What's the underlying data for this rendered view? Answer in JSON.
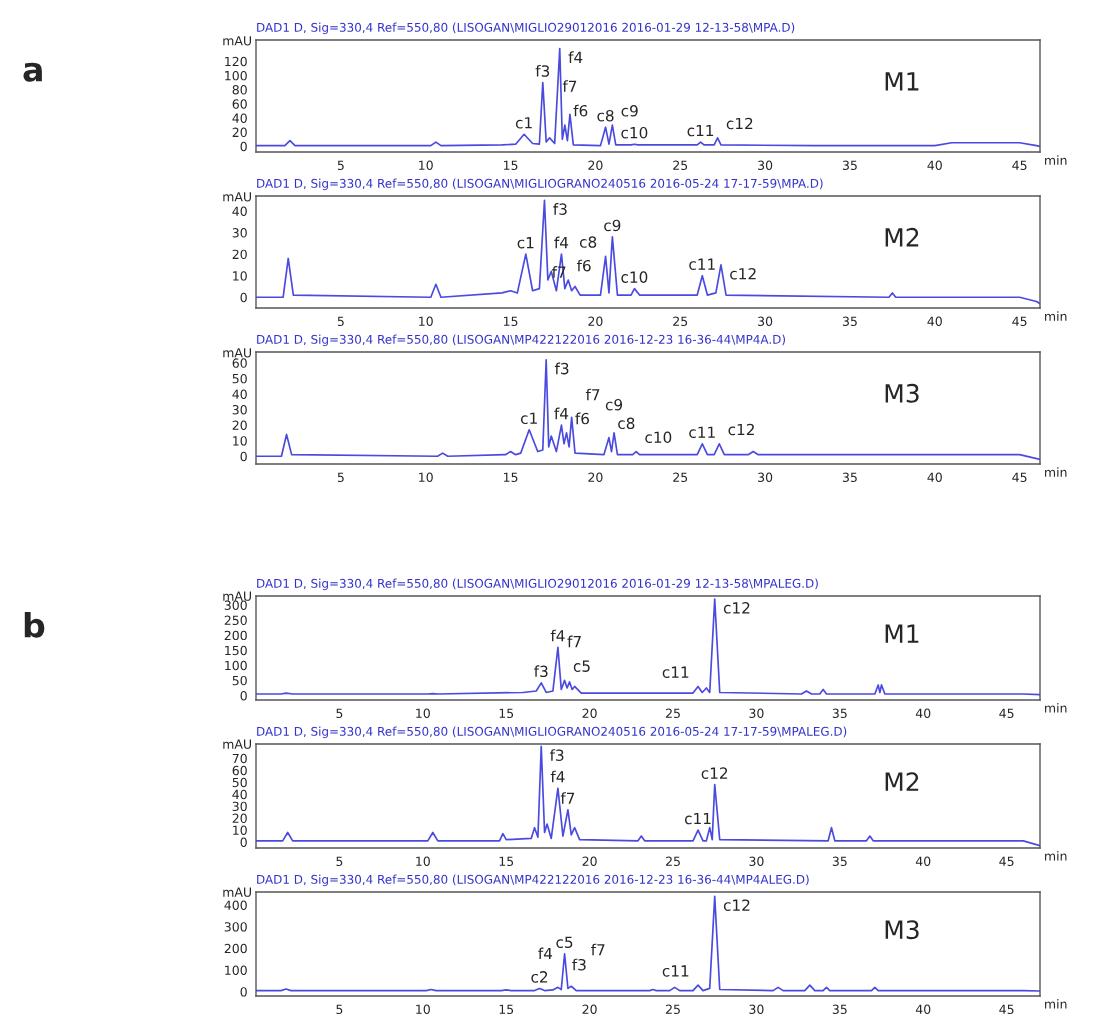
{
  "chart_data": [
    {
      "type": "line",
      "title": "DAD1 D, Sig=330,4 Ref=550,80 (LISOGAN\\MIGLIO29012016 2016-01-29 12-13-58\\MPA.D)",
      "xlabel": "min",
      "ylabel": "mAU",
      "xlim": [
        0,
        46.2
      ],
      "xticks": [
        5,
        10,
        15,
        20,
        25,
        30,
        35,
        40,
        45
      ],
      "ylim": [
        -8,
        150
      ],
      "yticks": [
        0,
        20,
        40,
        60,
        80,
        100,
        120
      ],
      "series": [
        {
          "color": "#4a4ae0",
          "x": [
            0,
            1.7,
            2.0,
            2.3,
            10.3,
            10.6,
            10.9,
            14.5,
            15.3,
            15.8,
            16.3,
            16.7,
            16.9,
            17.1,
            17.3,
            17.6,
            17.9,
            18.05,
            18.2,
            18.35,
            18.5,
            18.7,
            20.3,
            20.6,
            20.8,
            21.0,
            21.2,
            22.1,
            22.3,
            22.5,
            26.0,
            26.2,
            26.4,
            27.0,
            27.2,
            27.4,
            33,
            40,
            41,
            45,
            46,
            46.2
          ],
          "values": [
            1,
            1,
            8,
            1,
            1,
            6,
            1,
            2,
            3,
            17,
            4,
            3,
            90,
            6,
            12,
            4,
            138,
            10,
            30,
            8,
            45,
            2,
            1,
            27,
            3,
            30,
            2,
            2,
            3,
            2,
            2,
            6,
            2,
            2,
            12,
            2,
            1,
            1,
            5,
            5,
            1,
            0
          ]
        }
      ],
      "annotations": [
        "M1",
        "a",
        {
          "text": "c1",
          "x": 15.8,
          "y": 17
        },
        {
          "text": "f3",
          "x": 16.9,
          "y": 90
        },
        {
          "text": "f4",
          "x": 17.9,
          "y": 138
        },
        {
          "text": "f6",
          "x": 18.2,
          "y": 30
        },
        {
          "text": "f7",
          "x": 18.5,
          "y": 45
        },
        {
          "text": "c8",
          "x": 20.6,
          "y": 27
        },
        {
          "text": "c9",
          "x": 21.0,
          "y": 30
        },
        {
          "text": "c10",
          "x": 22.3,
          "y": 3
        },
        {
          "text": "c11",
          "x": 26.2,
          "y": 6
        },
        {
          "text": "c12",
          "x": 27.2,
          "y": 12
        }
      ]
    },
    {
      "type": "line",
      "title": "DAD1 D, Sig=330,4 Ref=550,80 (LISOGAN\\MIGLIOGRANO240516 2016-05-24 17-17-59\\MPA.D)",
      "xlabel": "min",
      "ylabel": "mAU",
      "xlim": [
        0,
        46.2
      ],
      "xticks": [
        5,
        10,
        15,
        20,
        25,
        30,
        35,
        40,
        45
      ],
      "ylim": [
        -5,
        47
      ],
      "yticks": [
        0,
        10,
        20,
        30,
        40
      ],
      "series": [
        {
          "color": "#4a4ae0",
          "x": [
            0,
            1.6,
            1.9,
            2.2,
            10.3,
            10.6,
            10.9,
            14.5,
            15.0,
            15.4,
            15.9,
            16.3,
            16.7,
            17.0,
            17.2,
            17.4,
            17.7,
            18.0,
            18.2,
            18.4,
            18.6,
            18.8,
            19.1,
            20.3,
            20.6,
            20.8,
            21.0,
            21.3,
            22.1,
            22.3,
            22.6,
            26.0,
            26.3,
            26.6,
            27.1,
            27.4,
            27.7,
            37.3,
            37.5,
            37.7,
            45,
            46,
            46.2
          ],
          "values": [
            0,
            0,
            18,
            1,
            0,
            6,
            0,
            2,
            3,
            2,
            20,
            3,
            4,
            45,
            8,
            12,
            3,
            20,
            4,
            8,
            3,
            5,
            1,
            1,
            19,
            2,
            28,
            1,
            1,
            4,
            1,
            1,
            10,
            1,
            2,
            15,
            1,
            0,
            2,
            0,
            0,
            -2,
            -3
          ]
        }
      ],
      "annotations": [
        "M2",
        {
          "text": "c1",
          "x": 15.9,
          "y": 20
        },
        {
          "text": "f3",
          "x": 17.0,
          "y": 45
        },
        {
          "text": "f4",
          "x": 18.0,
          "y": 20
        },
        {
          "text": "f6",
          "x": 18.4,
          "y": 8
        },
        {
          "text": "f7",
          "x": 18.8,
          "y": 5
        },
        {
          "text": "c8",
          "x": 20.6,
          "y": 19
        },
        {
          "text": "c9",
          "x": 21.0,
          "y": 28
        },
        {
          "text": "c10",
          "x": 22.3,
          "y": 4
        },
        {
          "text": "c11",
          "x": 26.3,
          "y": 10
        },
        {
          "text": "c12",
          "x": 27.4,
          "y": 15
        }
      ]
    },
    {
      "type": "line",
      "title": "DAD1 D, Sig=330,4 Ref=550,80 (LISOGAN\\MP422122016 2016-12-23 16-36-44\\MP4A.D)",
      "xlabel": "min",
      "ylabel": "mAU",
      "xlim": [
        0,
        46.2
      ],
      "xticks": [
        5,
        10,
        15,
        20,
        25,
        30,
        35,
        40,
        45
      ],
      "ylim": [
        -5,
        67
      ],
      "yticks": [
        0,
        10,
        20,
        30,
        40,
        50,
        60
      ],
      "series": [
        {
          "color": "#4a4ae0",
          "x": [
            0,
            1.5,
            1.8,
            2.1,
            10.7,
            11.0,
            11.3,
            14.7,
            15.0,
            15.3,
            15.6,
            16.1,
            16.6,
            16.9,
            17.1,
            17.25,
            17.4,
            17.7,
            18.0,
            18.15,
            18.3,
            18.45,
            18.6,
            18.8,
            20.5,
            20.8,
            20.95,
            21.1,
            21.3,
            22.2,
            22.4,
            22.6,
            26.0,
            26.3,
            26.6,
            27.0,
            27.3,
            27.6,
            29.0,
            29.3,
            29.6,
            45,
            46.2
          ],
          "values": [
            0,
            0,
            14,
            1,
            0,
            2,
            0,
            1,
            3,
            1,
            2,
            17,
            3,
            4,
            62,
            6,
            13,
            3,
            20,
            8,
            15,
            6,
            25,
            2,
            1,
            12,
            3,
            15,
            1,
            1,
            3,
            1,
            1,
            8,
            1,
            1,
            8,
            1,
            1,
            3,
            1,
            1,
            -2
          ]
        }
      ],
      "annotations": [
        "M3",
        {
          "text": "c1",
          "x": 16.1,
          "y": 17
        },
        {
          "text": "f3",
          "x": 17.1,
          "y": 62
        },
        {
          "text": "f4",
          "x": 18.0,
          "y": 20
        },
        {
          "text": "f6",
          "x": 18.3,
          "y": 15
        },
        {
          "text": "f7",
          "x": 18.6,
          "y": 25
        },
        {
          "text": "c8",
          "x": 20.8,
          "y": 12
        },
        {
          "text": "c9",
          "x": 21.1,
          "y": 15
        },
        {
          "text": "c10",
          "x": 22.4,
          "y": 3
        },
        {
          "text": "c11",
          "x": 26.3,
          "y": 8
        },
        {
          "text": "c12",
          "x": 27.3,
          "y": 8
        }
      ]
    },
    {
      "type": "line",
      "title": "DAD1 D, Sig=330,4 Ref=550,80 (LISOGAN\\MIGLIO29012016 2016-01-29 12-13-58\\MPALEG.D)",
      "xlabel": "min",
      "ylabel": "mAU",
      "xlim": [
        0,
        47
      ],
      "xticks": [
        5,
        10,
        15,
        20,
        25,
        30,
        35,
        40,
        45
      ],
      "ylim": [
        -15,
        330
      ],
      "yticks": [
        0,
        50,
        100,
        150,
        200,
        250,
        300
      ],
      "series": [
        {
          "color": "#4a4ae0",
          "x": [
            0,
            1.5,
            1.8,
            2.2,
            10.3,
            10.6,
            10.9,
            16.0,
            16.8,
            17.1,
            17.4,
            17.8,
            18.1,
            18.3,
            18.5,
            18.65,
            18.8,
            18.95,
            19.1,
            19.5,
            26.2,
            26.5,
            26.75,
            27.0,
            27.2,
            27.5,
            27.8,
            32.7,
            33.0,
            33.3,
            33.8,
            34.0,
            34.2,
            37.1,
            37.3,
            37.4,
            37.5,
            37.7,
            46,
            47
          ],
          "values": [
            5,
            5,
            8,
            5,
            5,
            6,
            5,
            10,
            15,
            42,
            10,
            15,
            160,
            20,
            50,
            25,
            45,
            20,
            30,
            8,
            8,
            30,
            10,
            25,
            10,
            320,
            10,
            5,
            15,
            5,
            5,
            20,
            5,
            5,
            35,
            10,
            35,
            5,
            5,
            3
          ]
        }
      ],
      "annotations": [
        "M1",
        "b",
        {
          "text": "f3",
          "x": 17.1,
          "y": 42
        },
        {
          "text": "f4",
          "x": 18.1,
          "y": 160
        },
        {
          "text": "c5",
          "x": 18.5,
          "y": 50
        },
        {
          "text": "f7",
          "x": 19.1,
          "y": 30
        },
        {
          "text": "c11",
          "x": 26.5,
          "y": 30
        },
        {
          "text": "c12",
          "x": 27.5,
          "y": 320
        }
      ]
    },
    {
      "type": "line",
      "title": "DAD1 D, Sig=330,4 Ref=550,80 (LISOGAN\\MIGLIOGRANO240516 2016-05-24 17-17-59\\MPALEG.D)",
      "xlabel": "min",
      "ylabel": "mAU",
      "xlim": [
        0,
        47
      ],
      "xticks": [
        5,
        10,
        15,
        20,
        25,
        30,
        35,
        40,
        45
      ],
      "ylim": [
        -5,
        82
      ],
      "yticks": [
        0,
        10,
        20,
        30,
        40,
        50,
        60,
        70
      ],
      "series": [
        {
          "color": "#4a4ae0",
          "x": [
            0,
            1.6,
            1.9,
            2.2,
            10.3,
            10.6,
            10.9,
            14.6,
            14.8,
            15.0,
            16.5,
            16.7,
            16.9,
            17.1,
            17.3,
            17.45,
            17.7,
            18.1,
            18.4,
            18.7,
            18.9,
            19.1,
            19.4,
            22.9,
            23.1,
            23.3,
            26.2,
            26.5,
            26.8,
            27.0,
            27.2,
            27.35,
            27.5,
            27.8,
            34.3,
            34.5,
            34.7,
            36.6,
            36.8,
            37.0,
            46,
            47
          ],
          "values": [
            1,
            1,
            8,
            1,
            1,
            8,
            1,
            1,
            7,
            2,
            3,
            12,
            4,
            80,
            8,
            15,
            3,
            45,
            5,
            27,
            6,
            12,
            2,
            1,
            5,
            1,
            1,
            10,
            1,
            1,
            12,
            2,
            48,
            2,
            1,
            12,
            1,
            1,
            5,
            1,
            1,
            -3
          ]
        }
      ],
      "annotations": [
        "M2",
        {
          "text": "f3",
          "x": 17.1,
          "y": 80
        },
        {
          "text": "f4",
          "x": 18.1,
          "y": 45
        },
        {
          "text": "f7",
          "x": 18.7,
          "y": 27
        },
        {
          "text": "c11",
          "x": 26.5,
          "y": 10
        },
        {
          "text": "c12",
          "x": 27.5,
          "y": 48
        }
      ]
    },
    {
      "type": "line",
      "title": "DAD1 D, Sig=330,4 Ref=550,80 (LISOGAN\\MP422122016 2016-12-23 16-36-44\\MP4ALEG.D)",
      "xlabel": "min",
      "ylabel": "mAU",
      "xlim": [
        0,
        47
      ],
      "xticks": [
        5,
        10,
        15,
        20,
        25,
        30,
        35,
        40,
        45
      ],
      "ylim": [
        -20,
        460
      ],
      "yticks": [
        0,
        100,
        200,
        300,
        400
      ],
      "series": [
        {
          "color": "#4a4ae0",
          "x": [
            0,
            1.5,
            1.8,
            2.1,
            10.2,
            10.5,
            10.8,
            14.7,
            15.0,
            15.3,
            16.7,
            17.0,
            17.3,
            17.8,
            18.1,
            18.3,
            18.5,
            18.7,
            18.9,
            19.2,
            23.6,
            23.8,
            24.0,
            24.8,
            25.1,
            25.4,
            26.2,
            26.5,
            26.8,
            27.2,
            27.5,
            27.8,
            31.0,
            31.3,
            31.6,
            32.9,
            33.2,
            33.5,
            34.0,
            34.2,
            34.4,
            36.9,
            37.1,
            37.3,
            46,
            47
          ],
          "values": [
            5,
            5,
            12,
            5,
            5,
            10,
            5,
            5,
            8,
            5,
            5,
            15,
            5,
            8,
            20,
            10,
            175,
            15,
            25,
            5,
            5,
            10,
            5,
            5,
            20,
            5,
            5,
            30,
            5,
            15,
            440,
            10,
            5,
            20,
            5,
            5,
            30,
            5,
            5,
            20,
            5,
            5,
            20,
            5,
            5,
            3
          ]
        }
      ],
      "annotations": [
        "M3",
        {
          "text": "c2",
          "x": 17.0,
          "y": 15
        },
        {
          "text": "f3",
          "x": 18.1,
          "y": 20
        },
        {
          "text": "f4",
          "x": 18.3,
          "y": 110
        },
        {
          "text": "c5",
          "x": 18.5,
          "y": 175
        },
        {
          "text": "f7",
          "x": 18.9,
          "y": 25
        },
        {
          "text": "c11",
          "x": 26.5,
          "y": 30
        },
        {
          "text": "c12",
          "x": 27.5,
          "y": 440
        }
      ]
    }
  ]
}
